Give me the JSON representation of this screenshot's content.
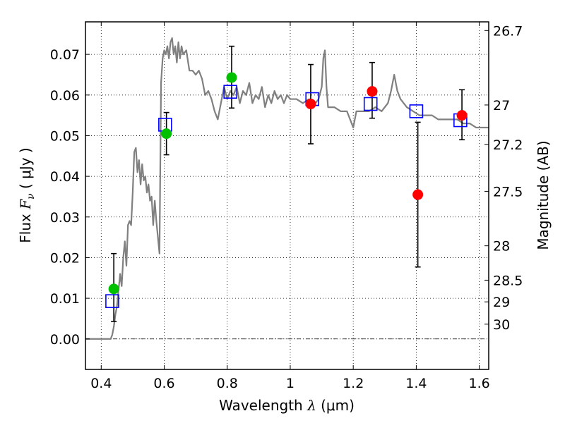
{
  "chart_data": {
    "type": "scatter",
    "xlabel": {
      "prefix": "Wavelength  ",
      "symbol": "λ",
      "suffix": " (μm)"
    },
    "ylabel": {
      "prefix": "Flux  ",
      "symbol": "F",
      "subscript": "ν",
      "suffix": "  ( μJy )"
    },
    "y2label": "Magnitude (AB)",
    "xlim": [
      0.35,
      1.63
    ],
    "ylim": [
      -0.0075,
      0.078
    ],
    "grid": true,
    "zero_line": true,
    "xticks": [
      {
        "v": 0.4,
        "label": "0.4"
      },
      {
        "v": 0.6,
        "label": "0.6"
      },
      {
        "v": 0.8,
        "label": "0.8"
      },
      {
        "v": 1.0,
        "label": "1"
      },
      {
        "v": 1.2,
        "label": "1.2"
      },
      {
        "v": 1.4,
        "label": "1.4"
      },
      {
        "v": 1.6,
        "label": "1.6"
      }
    ],
    "yticks": [
      {
        "v": 0.0,
        "label": "0.00"
      },
      {
        "v": 0.01,
        "label": "0.01"
      },
      {
        "v": 0.02,
        "label": "0.02"
      },
      {
        "v": 0.03,
        "label": "0.03"
      },
      {
        "v": 0.04,
        "label": "0.04"
      },
      {
        "v": 0.05,
        "label": "0.05"
      },
      {
        "v": 0.06,
        "label": "0.06"
      },
      {
        "v": 0.07,
        "label": "0.07"
      }
    ],
    "y2ticks": [
      {
        "mag": 26.7,
        "label": "26.7"
      },
      {
        "mag": 27,
        "label": "27"
      },
      {
        "mag": 27.2,
        "label": "27.2"
      },
      {
        "mag": 27.5,
        "label": "27.5"
      },
      {
        "mag": 28,
        "label": "28"
      },
      {
        "mag": 28.5,
        "label": "28.5"
      },
      {
        "mag": 29,
        "label": "29"
      },
      {
        "mag": 30,
        "label": "30"
      }
    ],
    "series": [
      {
        "kind": "line",
        "color": "#808080",
        "points": [
          [
            0.35,
            0.0
          ],
          [
            0.43,
            0.0
          ],
          [
            0.435,
            0.001
          ],
          [
            0.44,
            0.003
          ],
          [
            0.445,
            0.006
          ],
          [
            0.45,
            0.008
          ],
          [
            0.455,
            0.012
          ],
          [
            0.46,
            0.016
          ],
          [
            0.465,
            0.013
          ],
          [
            0.47,
            0.02
          ],
          [
            0.475,
            0.024
          ],
          [
            0.48,
            0.018
          ],
          [
            0.485,
            0.028
          ],
          [
            0.49,
            0.029
          ],
          [
            0.495,
            0.028
          ],
          [
            0.5,
            0.036
          ],
          [
            0.505,
            0.046
          ],
          [
            0.51,
            0.047
          ],
          [
            0.515,
            0.041
          ],
          [
            0.52,
            0.044
          ],
          [
            0.525,
            0.038
          ],
          [
            0.53,
            0.043
          ],
          [
            0.535,
            0.039
          ],
          [
            0.54,
            0.04
          ],
          [
            0.545,
            0.036
          ],
          [
            0.55,
            0.038
          ],
          [
            0.555,
            0.034
          ],
          [
            0.56,
            0.035
          ],
          [
            0.565,
            0.028
          ],
          [
            0.57,
            0.034
          ],
          [
            0.575,
            0.029
          ],
          [
            0.58,
            0.025
          ],
          [
            0.585,
            0.021
          ],
          [
            0.59,
            0.063
          ],
          [
            0.595,
            0.069
          ],
          [
            0.6,
            0.071
          ],
          [
            0.605,
            0.07
          ],
          [
            0.61,
            0.072
          ],
          [
            0.615,
            0.069
          ],
          [
            0.62,
            0.073
          ],
          [
            0.625,
            0.074
          ],
          [
            0.63,
            0.07
          ],
          [
            0.635,
            0.072
          ],
          [
            0.64,
            0.068
          ],
          [
            0.645,
            0.073
          ],
          [
            0.65,
            0.069
          ],
          [
            0.655,
            0.072
          ],
          [
            0.66,
            0.07
          ],
          [
            0.67,
            0.071
          ],
          [
            0.68,
            0.066
          ],
          [
            0.69,
            0.066
          ],
          [
            0.7,
            0.065
          ],
          [
            0.71,
            0.066
          ],
          [
            0.72,
            0.064
          ],
          [
            0.73,
            0.06
          ],
          [
            0.74,
            0.061
          ],
          [
            0.75,
            0.059
          ],
          [
            0.76,
            0.056
          ],
          [
            0.77,
            0.054
          ],
          [
            0.78,
            0.058
          ],
          [
            0.79,
            0.062
          ],
          [
            0.8,
            0.059
          ],
          [
            0.81,
            0.061
          ],
          [
            0.82,
            0.06
          ],
          [
            0.83,
            0.062
          ],
          [
            0.84,
            0.058
          ],
          [
            0.85,
            0.061
          ],
          [
            0.86,
            0.06
          ],
          [
            0.87,
            0.063
          ],
          [
            0.88,
            0.058
          ],
          [
            0.89,
            0.06
          ],
          [
            0.9,
            0.059
          ],
          [
            0.91,
            0.062
          ],
          [
            0.92,
            0.057
          ],
          [
            0.93,
            0.06
          ],
          [
            0.94,
            0.058
          ],
          [
            0.95,
            0.061
          ],
          [
            0.96,
            0.059
          ],
          [
            0.97,
            0.06
          ],
          [
            0.98,
            0.058
          ],
          [
            0.99,
            0.06
          ],
          [
            1.0,
            0.059
          ],
          [
            1.02,
            0.059
          ],
          [
            1.04,
            0.058
          ],
          [
            1.06,
            0.059
          ],
          [
            1.08,
            0.058
          ],
          [
            1.09,
            0.059
          ],
          [
            1.1,
            0.062
          ],
          [
            1.105,
            0.069
          ],
          [
            1.11,
            0.071
          ],
          [
            1.115,
            0.062
          ],
          [
            1.12,
            0.057
          ],
          [
            1.14,
            0.057
          ],
          [
            1.16,
            0.056
          ],
          [
            1.18,
            0.056
          ],
          [
            1.19,
            0.054
          ],
          [
            1.2,
            0.052
          ],
          [
            1.21,
            0.056
          ],
          [
            1.23,
            0.056
          ],
          [
            1.25,
            0.056
          ],
          [
            1.27,
            0.057
          ],
          [
            1.29,
            0.056
          ],
          [
            1.31,
            0.058
          ],
          [
            1.32,
            0.061
          ],
          [
            1.33,
            0.065
          ],
          [
            1.34,
            0.061
          ],
          [
            1.35,
            0.059
          ],
          [
            1.37,
            0.057
          ],
          [
            1.39,
            0.056
          ],
          [
            1.41,
            0.055
          ],
          [
            1.43,
            0.055
          ],
          [
            1.45,
            0.055
          ],
          [
            1.47,
            0.054
          ],
          [
            1.49,
            0.054
          ],
          [
            1.51,
            0.054
          ],
          [
            1.53,
            0.054
          ],
          [
            1.55,
            0.053
          ],
          [
            1.57,
            0.053
          ],
          [
            1.59,
            0.052
          ],
          [
            1.61,
            0.052
          ],
          [
            1.63,
            0.052
          ]
        ]
      },
      {
        "kind": "errorbar",
        "color": "#000000",
        "points": [
          {
            "x": 0.44,
            "low": 0.0043,
            "high": 0.021
          },
          {
            "x": 0.607,
            "low": 0.0453,
            "high": 0.0557
          },
          {
            "x": 0.814,
            "low": 0.0568,
            "high": 0.072
          },
          {
            "x": 1.065,
            "low": 0.048,
            "high": 0.0675
          },
          {
            "x": 1.26,
            "low": 0.0543,
            "high": 0.068
          },
          {
            "x": 1.405,
            "low": 0.0177,
            "high": 0.0533
          },
          {
            "x": 1.545,
            "low": 0.049,
            "high": 0.0613
          }
        ]
      },
      {
        "kind": "square",
        "color": "#0000ff",
        "points": [
          [
            0.435,
            0.0093
          ],
          [
            0.603,
            0.0527
          ],
          [
            0.81,
            0.0608
          ],
          [
            1.07,
            0.059
          ],
          [
            1.255,
            0.0578
          ],
          [
            1.4,
            0.056
          ],
          [
            1.54,
            0.0538
          ]
        ]
      },
      {
        "kind": "circle",
        "color": "#00c000",
        "points": [
          [
            0.44,
            0.0123
          ],
          [
            0.607,
            0.0505
          ],
          [
            0.814,
            0.0643
          ]
        ]
      },
      {
        "kind": "circle",
        "color": "#ff0000",
        "points": [
          [
            1.065,
            0.0578
          ],
          [
            1.26,
            0.0609
          ],
          [
            1.405,
            0.0355
          ],
          [
            1.545,
            0.055
          ]
        ]
      }
    ]
  }
}
